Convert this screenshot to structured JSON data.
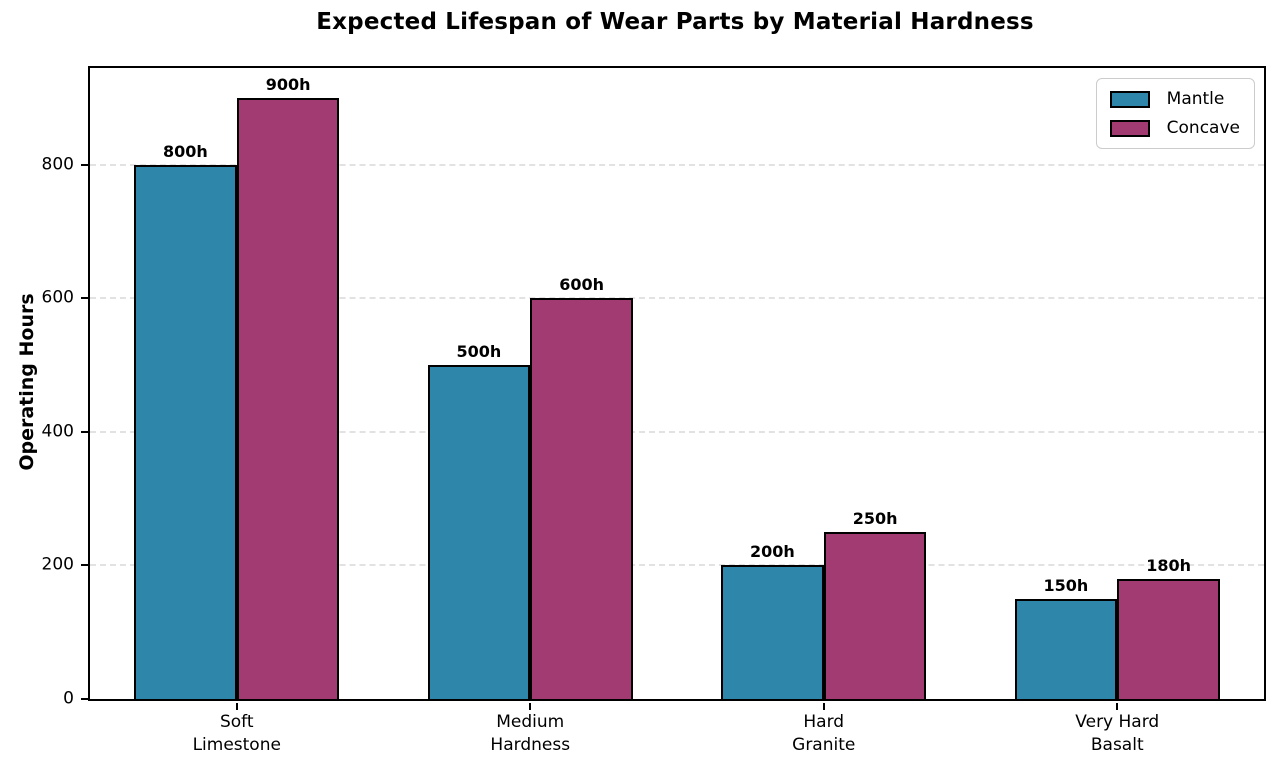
{
  "chart_data": {
    "type": "bar",
    "title": "Expected Lifespan of Wear Parts by Material Hardness",
    "xlabel": "",
    "ylabel": "Operating Hours",
    "categories": [
      [
        "Soft",
        "Limestone"
      ],
      [
        "Medium",
        "Hardness"
      ],
      [
        "Hard",
        "Granite"
      ],
      [
        "Very Hard",
        "Basalt"
      ]
    ],
    "series": [
      {
        "name": "Mantle",
        "color": "#2E86AB",
        "values": [
          800,
          500,
          200,
          150
        ],
        "labels": [
          "800h",
          "500h",
          "200h",
          "150h"
        ]
      },
      {
        "name": "Concave",
        "color": "#A23B72",
        "values": [
          900,
          600,
          250,
          180
        ],
        "labels": [
          "900h",
          "600h",
          "250h",
          "180h"
        ]
      }
    ],
    "ylim": [
      0,
      945
    ],
    "yticks": [
      0,
      200,
      400,
      600,
      800
    ],
    "grid": "horizontal dashed",
    "legend_position": "upper right",
    "bar_edge_color": "#000000",
    "background_color": "#ffffff"
  }
}
